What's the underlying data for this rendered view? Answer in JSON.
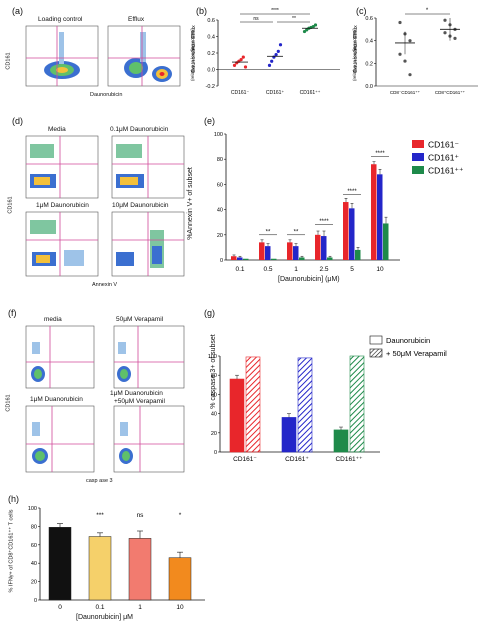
{
  "panels": {
    "a": {
      "label": "(a)",
      "plots": [
        "Loading control",
        "Efflux"
      ],
      "ylabel": "CD161",
      "xlabel": "Daunorubicin"
    },
    "b": {
      "label": "(b)",
      "ylabel": "Daunorubicin Efflux",
      "ylabel2": "(relative to loading control)",
      "sig_top": "****",
      "sig_left": "ns",
      "sig_right": "**"
    },
    "c": {
      "label": "(c)",
      "ylabel": "Daunorubicin Efflux",
      "ylabel2": "(relative to loading control)",
      "sig": "*"
    },
    "d": {
      "label": "(d)",
      "plots": [
        "Media",
        "0.1μM Daunorubicin",
        "1μM Daunorubicin",
        "10μM Daunorubicin"
      ],
      "ylabel": "CD161",
      "xlabel": "Annexin V"
    },
    "e": {
      "label": "(e)",
      "ylabel": "%Annexin V+ of subset",
      "xlabel": "[Daunorubicin] (μM)",
      "legend": [
        "CD161⁻",
        "CD161⁺",
        "CD161⁺⁺"
      ],
      "sig": [
        "**",
        "**",
        "****",
        "****",
        "****"
      ]
    },
    "f": {
      "label": "(f)",
      "plots": [
        "media",
        "50μM Verapamil",
        "1μM Duanorubicin",
        "1μM Duanorubicin\n+50μM Verapamil"
      ],
      "plot4_line1": "1μM Duanorubicin",
      "plot4_line2": "+50μM Verapamil",
      "ylabel": "CD161",
      "xlabel": "casp ase 3"
    },
    "g": {
      "label": "(g)",
      "ylabel": "% caspase 3+ of subset",
      "legend": [
        "Daunorubicin",
        "+ 50μM Verapamil"
      ]
    },
    "h": {
      "label": "(h)",
      "ylabel": "% IFNγ+ of CD8⁺CD161⁺⁺ T cells",
      "xlabel": "[Daunorubicin] μM",
      "sig": [
        "***",
        "ns",
        "*"
      ]
    }
  },
  "colors": {
    "red": "#e8262b",
    "blue": "#2426c9",
    "green": "#1e8a4a",
    "black": "#111111",
    "yellow": "#f5d06a",
    "salmon": "#f27b6f",
    "orange": "#f28a1e",
    "magenta": "#d04a9a"
  },
  "chart_data": [
    {
      "id": "b",
      "type": "scatter",
      "categories": [
        "CD161⁻",
        "CD161⁺",
        "CD161⁺⁺"
      ],
      "series": [
        {
          "name": "CD161⁻",
          "values": [
            0.05,
            0.08,
            0.1,
            0.12,
            0.15,
            0.03
          ]
        },
        {
          "name": "CD161⁺",
          "values": [
            0.05,
            0.1,
            0.15,
            0.18,
            0.22,
            0.3
          ]
        },
        {
          "name": "CD161⁺⁺",
          "values": [
            0.46,
            0.48,
            0.5,
            0.51,
            0.52,
            0.54
          ]
        }
      ],
      "means": [
        0.09,
        0.16,
        0.5
      ],
      "ylim": [
        -0.2,
        0.6
      ],
      "yticks": [
        "-0.2",
        "0.0",
        "0.2",
        "0.4",
        "0.6"
      ]
    },
    {
      "id": "c",
      "type": "scatter",
      "categories": [
        "CD8⁻CD161⁺⁺",
        "CD8⁺CD161⁺⁺"
      ],
      "series": [
        {
          "name": "CD8⁻CD161⁺⁺",
          "values": [
            0.56,
            0.46,
            0.4,
            0.28,
            0.22,
            0.1
          ]
        },
        {
          "name": "CD8⁺CD161⁺⁺",
          "values": [
            0.58,
            0.54,
            0.5,
            0.47,
            0.44,
            0.42
          ]
        }
      ],
      "means": [
        0.38,
        0.5
      ],
      "ylim": [
        0.0,
        0.6
      ],
      "yticks": [
        "0.0",
        "0.2",
        "0.4",
        "0.6"
      ]
    },
    {
      "id": "e",
      "type": "bar",
      "categories": [
        "0.1",
        "0.5",
        "1",
        "2.5",
        "5",
        "10"
      ],
      "series": [
        {
          "name": "CD161⁻",
          "values": [
            3,
            14,
            14,
            20,
            46,
            76
          ],
          "err": [
            1,
            2,
            2,
            3,
            3,
            2
          ]
        },
        {
          "name": "CD161⁺",
          "values": [
            2,
            11,
            11,
            19,
            41,
            68
          ],
          "err": [
            1,
            2,
            2,
            4,
            4,
            4
          ]
        },
        {
          "name": "CD161⁺⁺",
          "values": [
            1,
            1,
            2,
            2,
            8,
            29
          ],
          "err": [
            0,
            0,
            1,
            1,
            2,
            5
          ]
        }
      ],
      "ylim": [
        0,
        100
      ],
      "yticks": [
        "0",
        "20",
        "40",
        "60",
        "80",
        "100"
      ]
    },
    {
      "id": "g",
      "type": "bar",
      "categories": [
        "CD161⁻",
        "CD161⁺",
        "CD161⁺⁺"
      ],
      "series": [
        {
          "name": "Daunorubicin",
          "values": [
            76,
            36,
            23
          ],
          "err": [
            4,
            4,
            3
          ]
        },
        {
          "name": "+ 50μM Verapamil",
          "values": [
            99,
            98,
            100
          ],
          "err": [
            0,
            0,
            0
          ]
        }
      ],
      "ylim": [
        0,
        100
      ],
      "yticks": [
        "0",
        "20",
        "40",
        "60",
        "80",
        "100"
      ]
    },
    {
      "id": "h",
      "type": "bar",
      "categories": [
        "0",
        "0.1",
        "1",
        "10"
      ],
      "values": [
        79,
        69,
        67,
        46
      ],
      "err": [
        4,
        4,
        8,
        6
      ],
      "ylim": [
        0,
        100
      ],
      "yticks": [
        "0",
        "20",
        "40",
        "60",
        "80",
        "100"
      ]
    }
  ]
}
